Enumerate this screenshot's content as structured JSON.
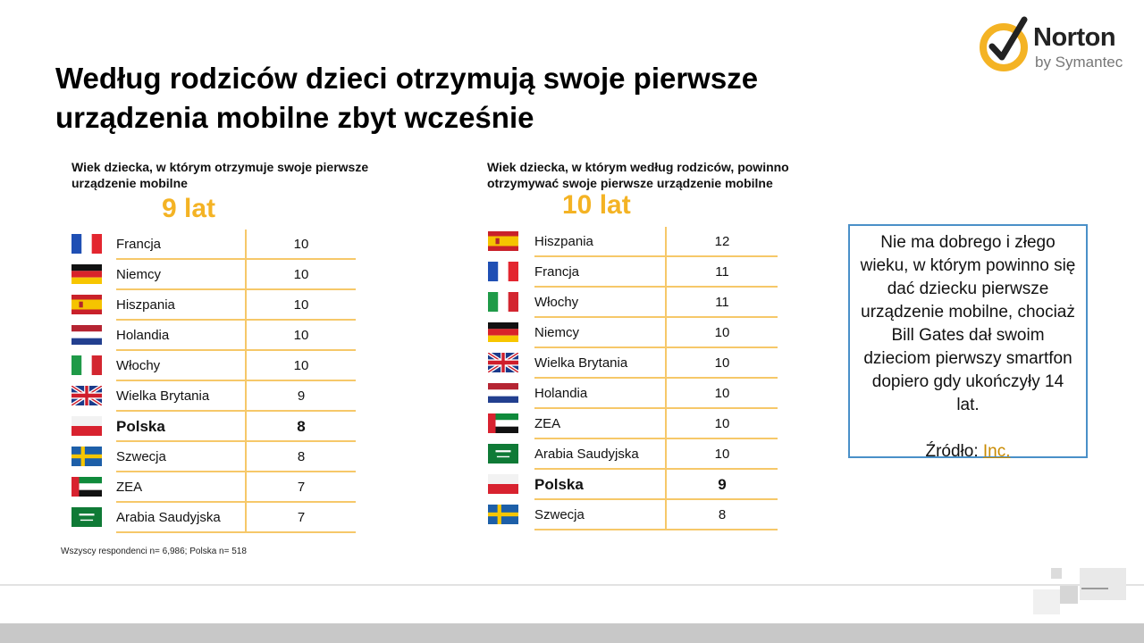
{
  "title": "Według rodziców dzieci otrzymują swoje pierwsze urządzenia mobilne zbyt wcześnie",
  "logo": {
    "word": "Norton",
    "sub": "by Symantec",
    "brand_color": "#f4b324"
  },
  "left_panel": {
    "heading": "Wiek dziecka, w którym otrzymuje swoje pierwsze urządzenie mobilne",
    "highlight": "9 lat",
    "rows": [
      {
        "country": "Francja",
        "value": "10",
        "flag": "france-flag"
      },
      {
        "country": "Niemcy",
        "value": "10",
        "flag": "germany-flag"
      },
      {
        "country": "Hiszpania",
        "value": "10",
        "flag": "spain-flag"
      },
      {
        "country": "Holandia",
        "value": "10",
        "flag": "netherlands-flag"
      },
      {
        "country": "Włochy",
        "value": "10",
        "flag": "italy-flag"
      },
      {
        "country": "Wielka Brytania",
        "value": "9",
        "flag": "uk-flag"
      },
      {
        "country": "Polska",
        "value": "8",
        "flag": "poland-flag"
      },
      {
        "country": "Szwecja",
        "value": "8",
        "flag": "sweden-flag"
      },
      {
        "country": "ZEA",
        "value": "7",
        "flag": "uae-flag"
      },
      {
        "country": "Arabia Saudyjska",
        "value": "7",
        "flag": "saudi-flag"
      }
    ]
  },
  "right_panel": {
    "heading": "Wiek dziecka, w którym według rodziców, powinno otrzymywać swoje pierwsze urządzenie mobilne",
    "highlight": "10 lat",
    "rows": [
      {
        "country": "Hiszpania",
        "value": "12",
        "flag": "spain-flag"
      },
      {
        "country": "Francja",
        "value": "11",
        "flag": "france-flag"
      },
      {
        "country": "Włochy",
        "value": "11",
        "flag": "italy-flag"
      },
      {
        "country": "Niemcy",
        "value": "10",
        "flag": "germany-flag"
      },
      {
        "country": "Wielka Brytania",
        "value": "10",
        "flag": "uk-flag"
      },
      {
        "country": "Holandia",
        "value": "10",
        "flag": "netherlands-flag"
      },
      {
        "country": "ZEA",
        "value": "10",
        "flag": "uae-flag"
      },
      {
        "country": "Arabia Saudyjska",
        "value": "10",
        "flag": "saudi-flag"
      },
      {
        "country": "Polska",
        "value": "9",
        "flag": "poland-flag"
      },
      {
        "country": "Szwecja",
        "value": "8",
        "flag": "sweden-flag"
      }
    ]
  },
  "note": {
    "text": "Nie ma dobrego i złego wieku, w którym powinno się dać dziecku pierwsze urządzenie mobilne, chociaż Bill Gates dał swoim dzieciom pierwszy smartfon dopiero gdy ukończyły 14 lat.",
    "source_label": "Źródło:",
    "source_link": "Inc."
  },
  "footnote": "Wszyscy respondenci n= 6,986; Polska n= 518",
  "colors": {
    "accent": "#f4b324",
    "row_line": "#f6c869",
    "box_border": "#4a90c8"
  }
}
